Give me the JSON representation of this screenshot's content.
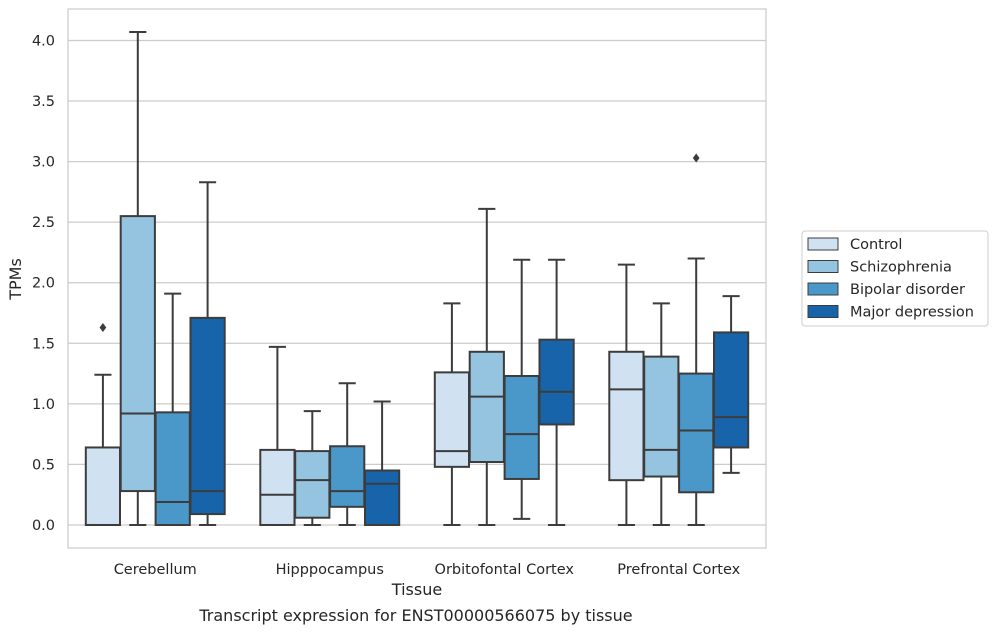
{
  "caption": "Transcript expression for ENST00000566075 by tissue",
  "chart_data": {
    "type": "box",
    "title": "",
    "xlabel": "Tissue",
    "ylabel": "TPMs",
    "ylim": [
      -0.19,
      4.26
    ],
    "yticks": [
      0.0,
      0.5,
      1.0,
      1.5,
      2.0,
      2.5,
      3.0,
      3.5,
      4.0
    ],
    "ytick_labels": [
      "0.0",
      "0.5",
      "1.0",
      "1.5",
      "2.0",
      "2.5",
      "3.0",
      "3.5",
      "4.0"
    ],
    "grid": "horizontal",
    "legend_position": "right",
    "categories": [
      "Cerebellum",
      "Hipppocampus",
      "Orbitofontal Cortex",
      "Prefrontal Cortex"
    ],
    "series": [
      {
        "name": "Control",
        "color": "#d0e1f2",
        "boxes": [
          {
            "whislo": 0.0,
            "q1": 0.0,
            "med": 0.0,
            "q3": 0.64,
            "whishi": 1.24,
            "fliers": [
              1.63
            ]
          },
          {
            "whislo": 0.0,
            "q1": 0.0,
            "med": 0.25,
            "q3": 0.62,
            "whishi": 1.47,
            "fliers": []
          },
          {
            "whislo": 0.0,
            "q1": 0.48,
            "med": 0.61,
            "q3": 1.26,
            "whishi": 1.83,
            "fliers": []
          },
          {
            "whislo": 0.0,
            "q1": 0.37,
            "med": 1.12,
            "q3": 1.43,
            "whishi": 2.15,
            "fliers": []
          }
        ]
      },
      {
        "name": "Schizophrenia",
        "color": "#94c4df",
        "boxes": [
          {
            "whislo": 0.0,
            "q1": 0.28,
            "med": 0.92,
            "q3": 2.55,
            "whishi": 4.07,
            "fliers": []
          },
          {
            "whislo": 0.0,
            "q1": 0.06,
            "med": 0.37,
            "q3": 0.61,
            "whishi": 0.94,
            "fliers": []
          },
          {
            "whislo": 0.0,
            "q1": 0.52,
            "med": 1.06,
            "q3": 1.43,
            "whishi": 2.61,
            "fliers": []
          },
          {
            "whislo": 0.0,
            "q1": 0.4,
            "med": 0.62,
            "q3": 1.39,
            "whishi": 1.83,
            "fliers": []
          }
        ]
      },
      {
        "name": "Bipolar disorder",
        "color": "#4a98c9",
        "boxes": [
          {
            "whislo": 0.0,
            "q1": 0.0,
            "med": 0.19,
            "q3": 0.93,
            "whishi": 1.91,
            "fliers": []
          },
          {
            "whislo": 0.0,
            "q1": 0.15,
            "med": 0.28,
            "q3": 0.65,
            "whishi": 1.17,
            "fliers": []
          },
          {
            "whislo": 0.05,
            "q1": 0.38,
            "med": 0.75,
            "q3": 1.23,
            "whishi": 2.19,
            "fliers": []
          },
          {
            "whislo": 0.0,
            "q1": 0.27,
            "med": 0.78,
            "q3": 1.25,
            "whishi": 2.2,
            "fliers": [
              3.03
            ]
          }
        ]
      },
      {
        "name": "Major depression",
        "color": "#1764ab",
        "boxes": [
          {
            "whislo": 0.0,
            "q1": 0.09,
            "med": 0.28,
            "q3": 1.71,
            "whishi": 2.83,
            "fliers": []
          },
          {
            "whislo": 0.0,
            "q1": 0.0,
            "med": 0.34,
            "q3": 0.45,
            "whishi": 1.02,
            "fliers": []
          },
          {
            "whislo": 0.0,
            "q1": 0.83,
            "med": 1.1,
            "q3": 1.53,
            "whishi": 2.19,
            "fliers": []
          },
          {
            "whislo": 0.43,
            "q1": 0.64,
            "med": 0.89,
            "q3": 1.59,
            "whishi": 1.89,
            "fliers": []
          }
        ]
      }
    ]
  }
}
